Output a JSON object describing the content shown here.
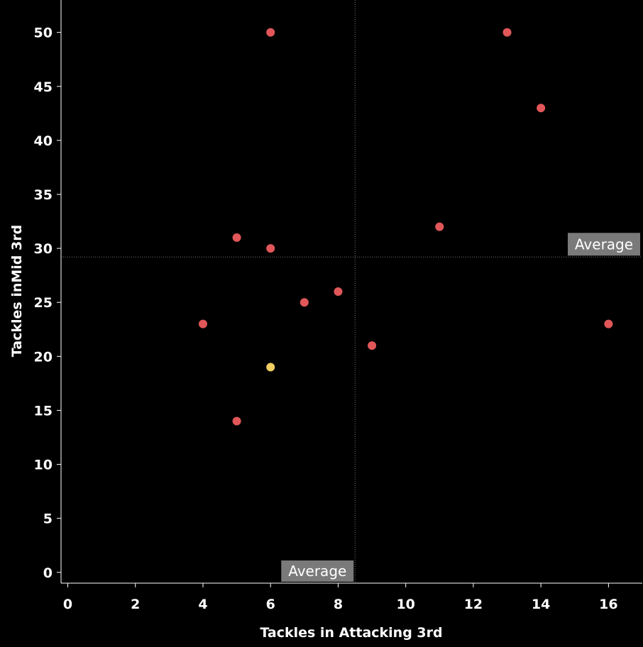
{
  "chart_data": {
    "type": "scatter",
    "xlabel": "Tackles in Attacking 3rd",
    "ylabel": "Tackles inMid 3rd",
    "xlim": [
      -0.2,
      17.0
    ],
    "ylim": [
      -1.0,
      53.0
    ],
    "x_ticks": [
      0,
      2,
      4,
      6,
      8,
      10,
      12,
      14,
      16
    ],
    "y_ticks": [
      0,
      5,
      10,
      15,
      20,
      25,
      30,
      35,
      40,
      45,
      50
    ],
    "grid": false,
    "reference_lines": [
      {
        "axis": "x",
        "value": 8.5,
        "label": "Average"
      },
      {
        "axis": "y",
        "value": 29.2,
        "label": "Average"
      }
    ],
    "colors": {
      "background": "#000000",
      "point": "#e15759",
      "highlight": "#f1ce63",
      "axis": "#ffffff",
      "reference_line": "#777777",
      "label_box": "#7a7a7a"
    },
    "points": [
      {
        "x": 6,
        "y": 50,
        "highlight": false
      },
      {
        "x": 13,
        "y": 50,
        "highlight": false
      },
      {
        "x": 14,
        "y": 43,
        "highlight": false
      },
      {
        "x": 11,
        "y": 32,
        "highlight": false
      },
      {
        "x": 5,
        "y": 31,
        "highlight": false
      },
      {
        "x": 6,
        "y": 30,
        "highlight": false
      },
      {
        "x": 8,
        "y": 26,
        "highlight": false
      },
      {
        "x": 7,
        "y": 25,
        "highlight": false
      },
      {
        "x": 4,
        "y": 23,
        "highlight": false
      },
      {
        "x": 16,
        "y": 23,
        "highlight": false
      },
      {
        "x": 9,
        "y": 21,
        "highlight": false
      },
      {
        "x": 6,
        "y": 19,
        "highlight": true
      },
      {
        "x": 5,
        "y": 14,
        "highlight": false
      }
    ]
  }
}
